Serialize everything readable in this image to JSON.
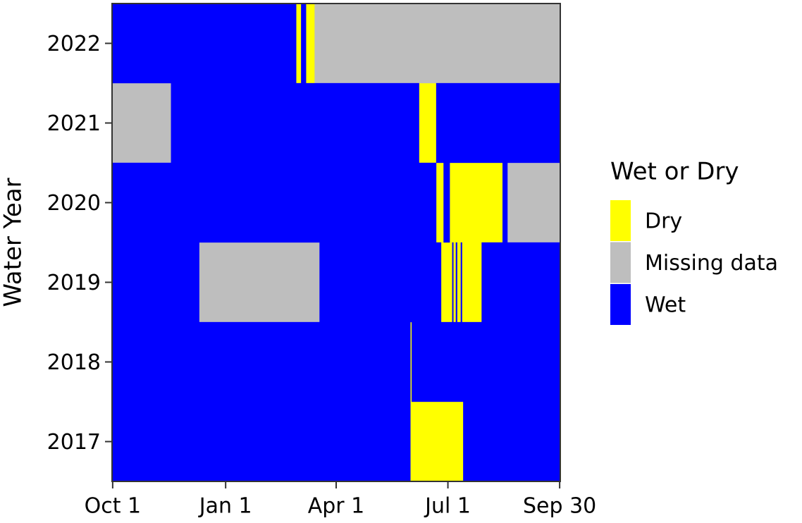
{
  "chart_data": {
    "type": "tile",
    "y_label": "Water Year",
    "legend_title": "Wet or Dry",
    "xlim": [
      0.5,
      365.5
    ],
    "xticks": [
      {
        "value": 1,
        "label": "Oct 1"
      },
      {
        "value": 93,
        "label": "Jan 1"
      },
      {
        "value": 183,
        "label": "Apr 1"
      },
      {
        "value": 274,
        "label": "Jul 1"
      },
      {
        "value": 365,
        "label": "Sep 30"
      }
    ],
    "ylim": [
      2016.5,
      2022.5
    ],
    "yticks": [
      2017,
      2018,
      2019,
      2020,
      2021,
      2022
    ],
    "series": [
      {
        "name": "Dry",
        "color": "#ffff00",
        "tiles": [
          {
            "y": 2022,
            "x0": 151,
            "x1": 154
          },
          {
            "y": 2022,
            "x0": 159,
            "x1": 165
          },
          {
            "y": 2021,
            "x0": 251,
            "x1": 264
          },
          {
            "y": 2020,
            "x0": 265,
            "x1": 270
          },
          {
            "y": 2020,
            "x0": 276,
            "x1": 318
          },
          {
            "y": 2019,
            "x0": 269,
            "x1": 277
          },
          {
            "y": 2019,
            "x0": 279,
            "x1": 280
          },
          {
            "y": 2019,
            "x0": 282,
            "x1": 284
          },
          {
            "y": 2019,
            "x0": 286,
            "x1": 301
          },
          {
            "y": 2018,
            "x0": 244,
            "x1": 244
          },
          {
            "y": 2017,
            "x0": 244,
            "x1": 286
          }
        ]
      },
      {
        "name": "Missing data",
        "color": "#bebebe",
        "tiles": [
          {
            "y": 2022,
            "x0": 166,
            "x1": 365
          },
          {
            "y": 2021,
            "x0": 1,
            "x1": 48
          },
          {
            "y": 2020,
            "x0": 323,
            "x1": 365
          },
          {
            "y": 2019,
            "x0": 72,
            "x1": 169
          }
        ]
      },
      {
        "name": "Wet",
        "color": "#0000ff",
        "tiles": [
          {
            "y": 2022,
            "x0": 1,
            "x1": 150
          },
          {
            "y": 2022,
            "x0": 155,
            "x1": 158
          },
          {
            "y": 2021,
            "x0": 49,
            "x1": 250
          },
          {
            "y": 2021,
            "x0": 265,
            "x1": 365
          },
          {
            "y": 2020,
            "x0": 1,
            "x1": 264
          },
          {
            "y": 2020,
            "x0": 271,
            "x1": 275
          },
          {
            "y": 2020,
            "x0": 319,
            "x1": 322
          },
          {
            "y": 2019,
            "x0": 1,
            "x1": 71
          },
          {
            "y": 2019,
            "x0": 170,
            "x1": 268
          },
          {
            "y": 2019,
            "x0": 278,
            "x1": 278
          },
          {
            "y": 2019,
            "x0": 281,
            "x1": 281
          },
          {
            "y": 2019,
            "x0": 285,
            "x1": 285
          },
          {
            "y": 2019,
            "x0": 302,
            "x1": 365
          },
          {
            "y": 2018,
            "x0": 1,
            "x1": 243
          },
          {
            "y": 2018,
            "x0": 245,
            "x1": 365
          },
          {
            "y": 2017,
            "x0": 1,
            "x1": 243
          },
          {
            "y": 2017,
            "x0": 287,
            "x1": 365
          }
        ]
      }
    ]
  }
}
